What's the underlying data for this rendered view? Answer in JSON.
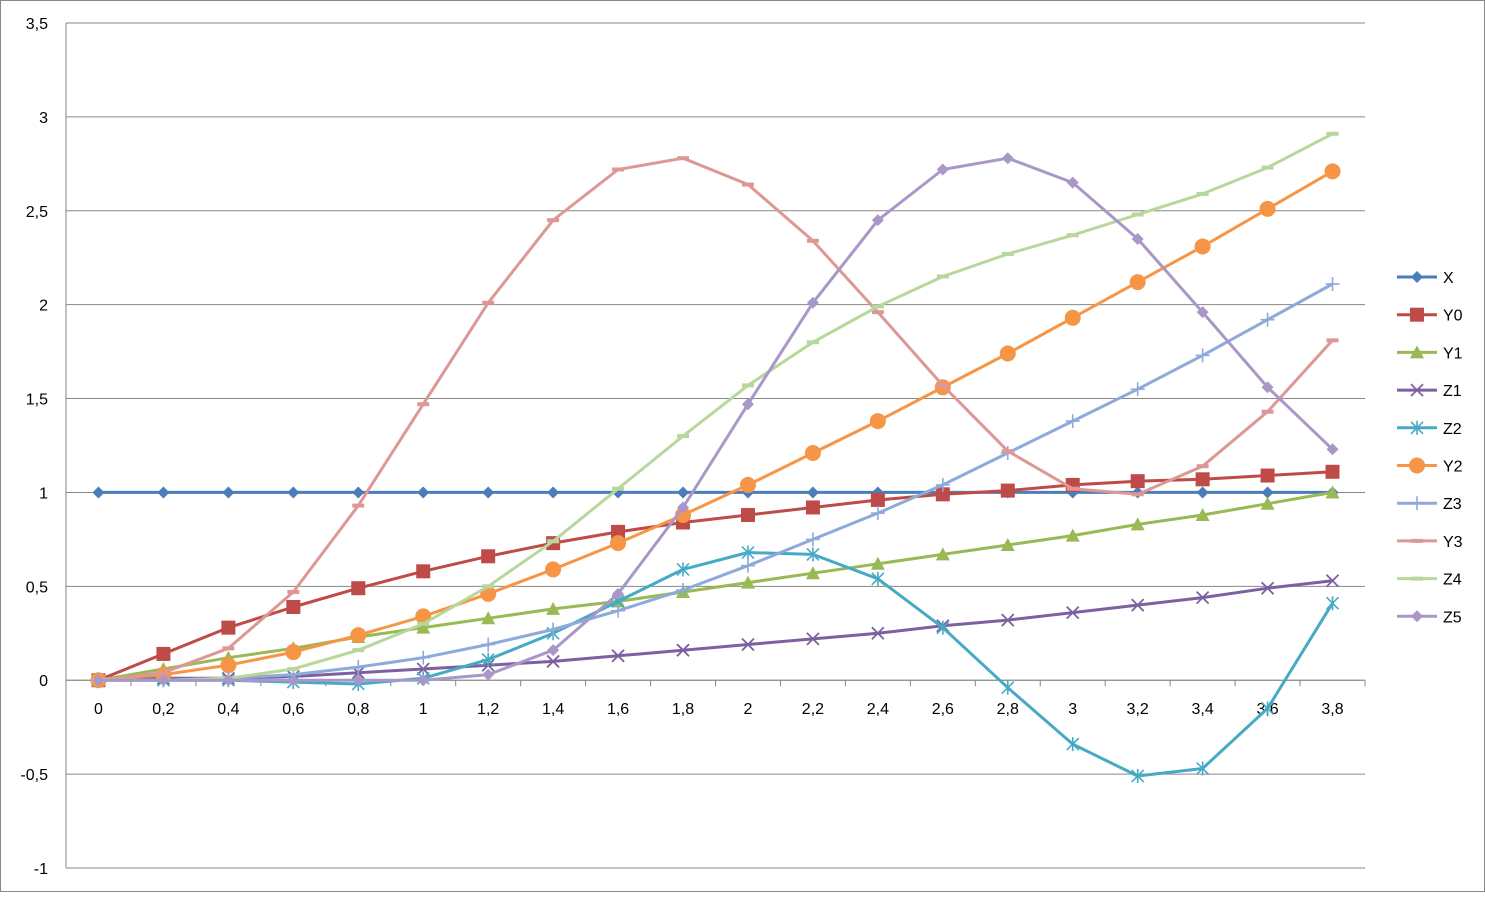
{
  "chart_data": {
    "type": "line",
    "title": "",
    "xlabel": "",
    "ylabel": "",
    "x": [
      "0",
      "0,2",
      "0,4",
      "0,6",
      "0,8",
      "1",
      "1,2",
      "1,4",
      "1,6",
      "1,8",
      "2",
      "2,2",
      "2,4",
      "2,6",
      "2,8",
      "3",
      "3,2",
      "3,4",
      "3,6",
      "3,8"
    ],
    "ylim": [
      -1,
      3.5
    ],
    "yticks": [
      "-1",
      "-0,5",
      "0",
      "0,5",
      "1",
      "1,5",
      "2",
      "2,5",
      "3",
      "3,5"
    ],
    "grid": "horizontal",
    "legend_position": "right",
    "series": [
      {
        "name": "X",
        "color": "#4a7ebb",
        "marker": "diamond",
        "values": [
          1,
          1,
          1,
          1,
          1,
          1,
          1,
          1,
          1,
          1,
          1,
          1,
          1,
          1,
          1,
          1,
          1,
          1,
          1,
          1
        ]
      },
      {
        "name": "Y0",
        "color": "#be4b48",
        "marker": "square",
        "values": [
          0,
          0.14,
          0.28,
          0.39,
          0.49,
          0.58,
          0.66,
          0.73,
          0.79,
          0.84,
          0.88,
          0.92,
          0.96,
          0.99,
          1.01,
          1.04,
          1.06,
          1.07,
          1.09,
          1.11
        ]
      },
      {
        "name": "Y1",
        "color": "#98b954",
        "marker": "triangle",
        "values": [
          0,
          0.06,
          0.12,
          0.17,
          0.23,
          0.28,
          0.33,
          0.38,
          0.42,
          0.47,
          0.52,
          0.57,
          0.62,
          0.67,
          0.72,
          0.77,
          0.83,
          0.88,
          0.94,
          1.0
        ]
      },
      {
        "name": "Z1",
        "color": "#7d60a0",
        "marker": "x",
        "values": [
          0,
          0.01,
          0.01,
          0.02,
          0.04,
          0.06,
          0.08,
          0.1,
          0.13,
          0.16,
          0.19,
          0.22,
          0.25,
          0.29,
          0.32,
          0.36,
          0.4,
          0.44,
          0.49,
          0.53
        ]
      },
      {
        "name": "Z2",
        "color": "#46aac5",
        "marker": "star",
        "values": [
          0,
          0.0,
          0.0,
          -0.01,
          -0.02,
          0.01,
          0.11,
          0.25,
          0.42,
          0.59,
          0.68,
          0.67,
          0.54,
          0.28,
          -0.04,
          -0.34,
          -0.51,
          -0.47,
          -0.15,
          0.41
        ]
      },
      {
        "name": "Y2",
        "color": "#f69546",
        "marker": "circle",
        "values": [
          0,
          0.03,
          0.08,
          0.15,
          0.24,
          0.34,
          0.46,
          0.59,
          0.73,
          0.88,
          1.04,
          1.21,
          1.38,
          1.56,
          1.74,
          1.93,
          2.12,
          2.31,
          2.51,
          2.71
        ]
      },
      {
        "name": "Z3",
        "color": "#8ea9db",
        "marker": "plus",
        "values": [
          0,
          0.0,
          0.01,
          0.03,
          0.07,
          0.12,
          0.19,
          0.27,
          0.37,
          0.48,
          0.61,
          0.75,
          0.89,
          1.04,
          1.21,
          1.38,
          1.55,
          1.73,
          1.92,
          2.11
        ]
      },
      {
        "name": "Y3",
        "color": "#dd9896",
        "marker": "dash",
        "values": [
          0,
          0.04,
          0.17,
          0.47,
          0.93,
          1.47,
          2.01,
          2.45,
          2.72,
          2.78,
          2.64,
          2.34,
          1.96,
          1.57,
          1.22,
          1.02,
          0.99,
          1.14,
          1.43,
          1.81
        ]
      },
      {
        "name": "Z4",
        "color": "#b7d79b",
        "marker": "dash",
        "values": [
          0,
          0.0,
          0.01,
          0.06,
          0.16,
          0.3,
          0.5,
          0.74,
          1.02,
          1.3,
          1.57,
          1.8,
          1.99,
          2.15,
          2.27,
          2.37,
          2.48,
          2.59,
          2.73,
          2.91
        ]
      },
      {
        "name": "Z5",
        "color": "#a997c8",
        "marker": "diamond",
        "values": [
          0,
          0.0,
          0.0,
          0.0,
          0.0,
          0.0,
          0.03,
          0.16,
          0.46,
          0.92,
          1.47,
          2.01,
          2.45,
          2.72,
          2.78,
          2.65,
          2.35,
          1.96,
          1.56,
          1.23
        ]
      }
    ]
  }
}
